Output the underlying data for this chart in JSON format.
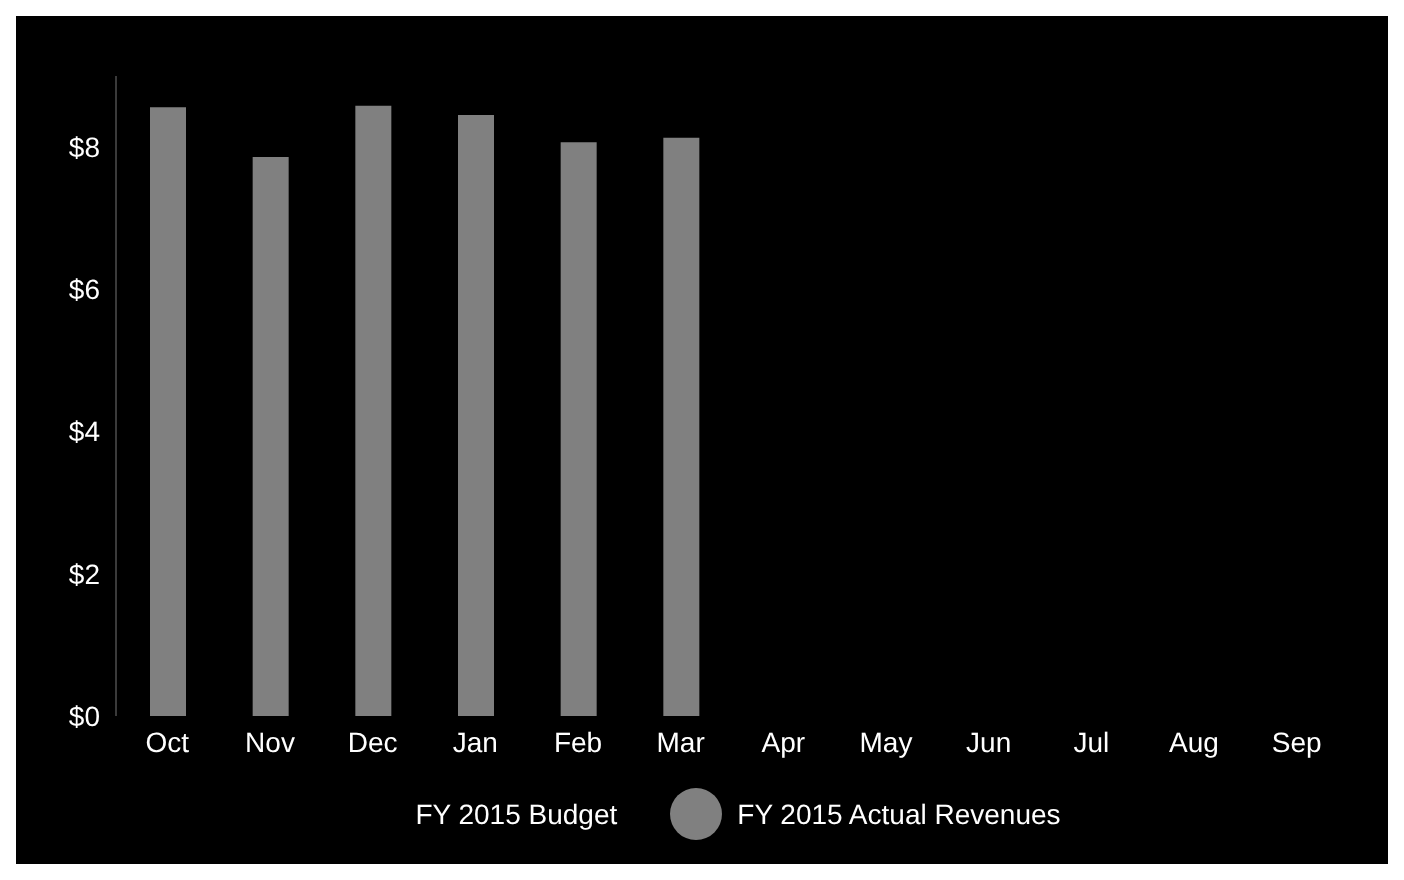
{
  "chart_data": {
    "type": "bar",
    "categories": [
      "Oct",
      "Nov",
      "Dec",
      "Jan",
      "Feb",
      "Mar",
      "Apr",
      "May",
      "Jun",
      "Jul",
      "Aug",
      "Sep"
    ],
    "series": [
      {
        "name": "FY 2015 Budget",
        "type": "line",
        "values": [
          null,
          null,
          null,
          null,
          null,
          null,
          null,
          null,
          null,
          null,
          null,
          null
        ]
      },
      {
        "name": "FY 2015 Actual Revenues",
        "color": "#808080",
        "values": [
          8.56,
          7.86,
          8.58,
          8.45,
          8.07,
          8.13,
          null,
          null,
          null,
          null,
          null,
          null
        ]
      }
    ],
    "ylim": [
      0,
      9
    ],
    "yticks": [
      {
        "value": 0,
        "label": "$0"
      },
      {
        "value": 2,
        "label": "$2"
      },
      {
        "value": 4,
        "label": "$4"
      },
      {
        "value": 6,
        "label": "$6"
      },
      {
        "value": 8,
        "label": "$8"
      }
    ],
    "grid": false,
    "legend": "bottom"
  }
}
